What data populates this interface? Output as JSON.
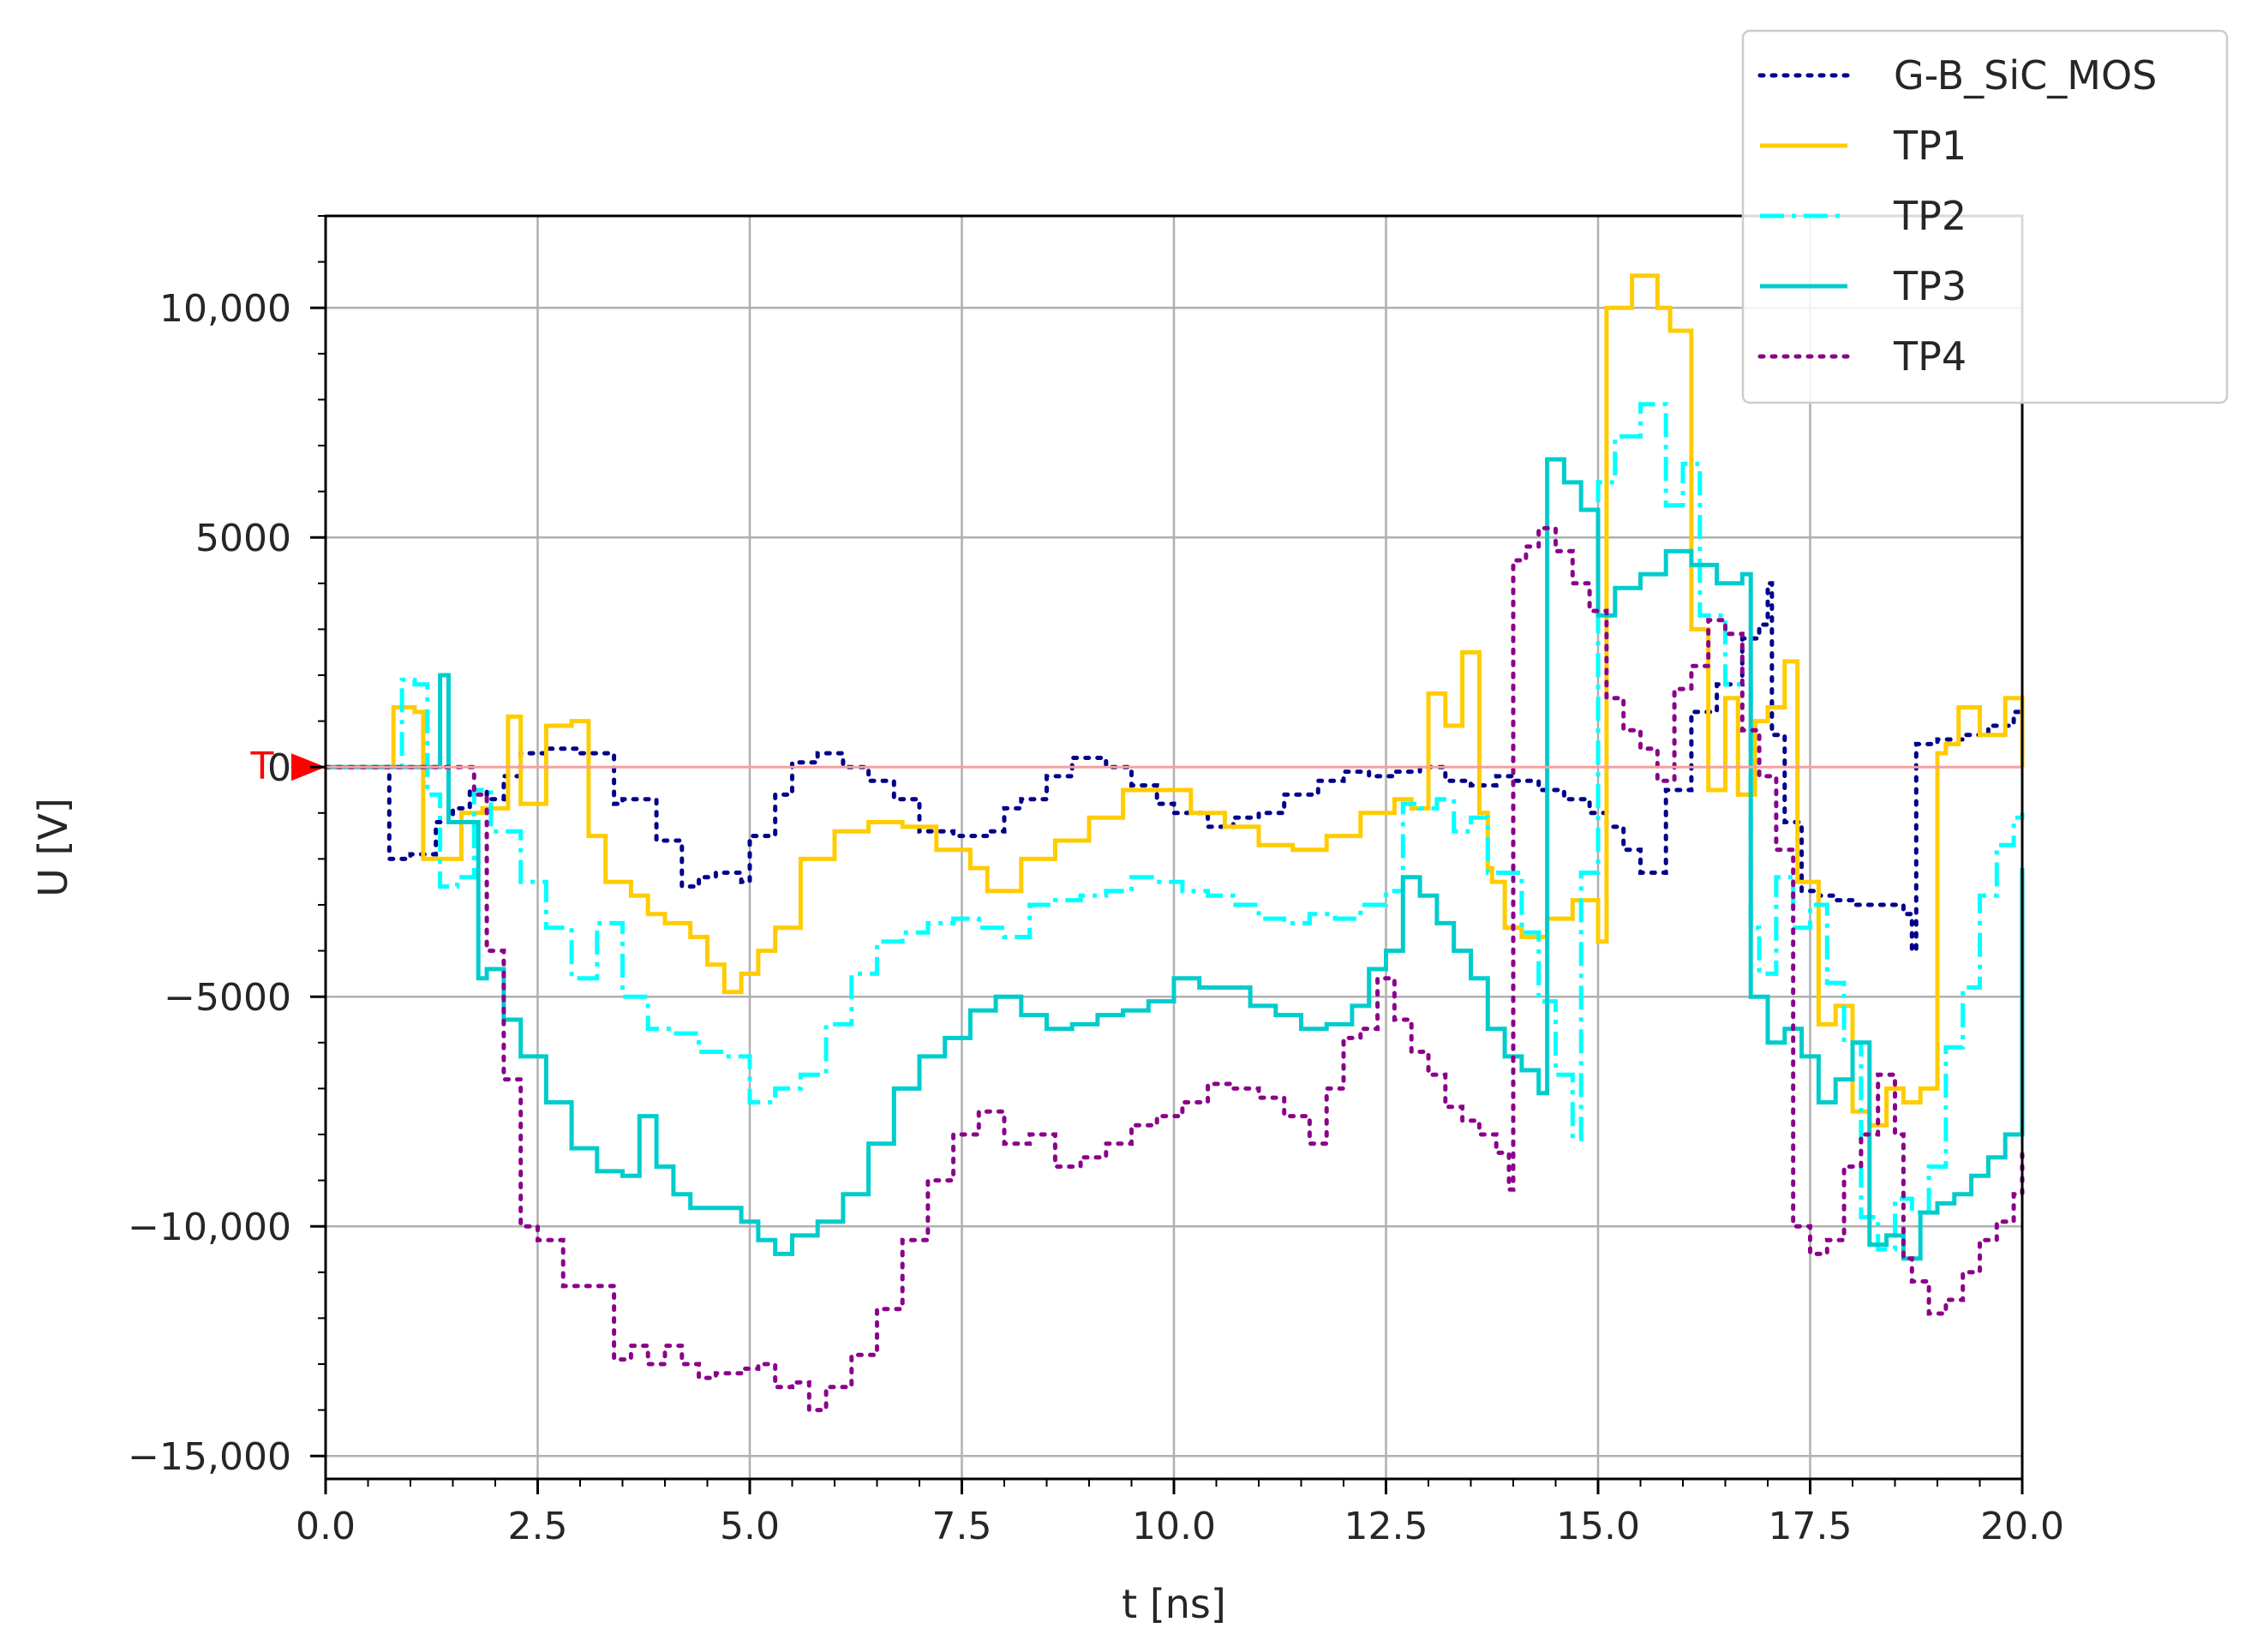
{
  "chart_data": {
    "type": "line",
    "step": true,
    "xlabel": "t [ns]",
    "ylabel": "U [V]",
    "xlim": [
      0,
      20
    ],
    "ylim": [
      -15500,
      12000
    ],
    "xticks": [
      0.0,
      2.5,
      5.0,
      7.5,
      10.0,
      12.5,
      15.0,
      17.5,
      20.0
    ],
    "xtick_labels": [
      "0.0",
      "2.5",
      "5.0",
      "7.5",
      "10.0",
      "12.5",
      "15.0",
      "17.5",
      "20.0"
    ],
    "yticks": [
      10000,
      5000,
      0,
      -5000,
      -10000,
      -15000
    ],
    "ytick_labels": [
      "10,000",
      "5000",
      "0",
      "−5000",
      "−10,000",
      "−15,000"
    ],
    "grid": true,
    "legend_position": "top-right",
    "trigger": {
      "label": "T",
      "value": 0,
      "color": "#ff0000"
    },
    "series": [
      {
        "name": "G-B_SiC_MOS",
        "color": "#00008b",
        "dash": "dotted",
        "x": [
          0,
          0.7,
          0.75,
          1.0,
          1.3,
          1.5,
          1.7,
          1.9,
          2.1,
          2.3,
          2.6,
          3.0,
          3.4,
          3.5,
          3.9,
          4.2,
          4.4,
          4.6,
          4.9,
          5.0,
          5.3,
          5.5,
          5.8,
          6.1,
          6.4,
          6.7,
          7.0,
          7.4,
          7.8,
          8.0,
          8.2,
          8.5,
          8.8,
          9.2,
          9.5,
          9.8,
          10.0,
          10.4,
          10.7,
          11.0,
          11.3,
          11.7,
          12.0,
          12.3,
          12.6,
          12.9,
          13.2,
          13.5,
          13.8,
          14.0,
          14.3,
          14.6,
          14.9,
          15.1,
          15.3,
          15.5,
          15.8,
          16.1,
          16.4,
          16.7,
          16.9,
          17.0,
          17.05,
          17.2,
          17.4,
          17.6,
          17.8,
          18.0,
          18.3,
          18.6,
          18.7,
          18.75,
          19.0,
          19.3,
          19.6,
          19.9,
          20.0
        ],
        "y": [
          0,
          0,
          -2000,
          -1900,
          -1200,
          -900,
          -500,
          -700,
          -200,
          300,
          400,
          300,
          -800,
          -700,
          -1600,
          -2600,
          -2400,
          -2300,
          -2500,
          -1500,
          -600,
          100,
          300,
          0,
          -300,
          -700,
          -1400,
          -1500,
          -1400,
          -900,
          -700,
          -200,
          200,
          0,
          -400,
          -800,
          -1000,
          -1300,
          -1100,
          -1000,
          -600,
          -300,
          -100,
          -200,
          -100,
          0,
          -300,
          -400,
          -200,
          -300,
          -500,
          -700,
          -1000,
          -1300,
          -1800,
          -2300,
          -500,
          1200,
          1800,
          2800,
          3100,
          4000,
          700,
          -1200,
          -2700,
          -2800,
          -2900,
          -3000,
          -3000,
          -3200,
          -4000,
          500,
          600,
          700,
          900,
          1200,
          1400
        ]
      },
      {
        "name": "TP1",
        "color": "#ffcc00",
        "dash": "solid",
        "x": [
          0,
          0.8,
          1.05,
          1.15,
          1.5,
          1.6,
          1.85,
          2.15,
          2.3,
          2.6,
          2.9,
          3.1,
          3.3,
          3.6,
          3.8,
          4.0,
          4.3,
          4.5,
          4.7,
          4.9,
          5.1,
          5.3,
          5.6,
          6.0,
          6.4,
          6.8,
          7.2,
          7.6,
          7.8,
          8.2,
          8.6,
          9.0,
          9.4,
          9.8,
          10.2,
          10.6,
          11.0,
          11.4,
          11.8,
          12.2,
          12.6,
          12.8,
          13.0,
          13.2,
          13.4,
          13.6,
          13.7,
          13.75,
          13.9,
          14.1,
          14.4,
          14.7,
          15.0,
          15.1,
          15.4,
          15.7,
          15.85,
          16.1,
          16.3,
          16.5,
          16.65,
          16.85,
          17.0,
          17.2,
          17.35,
          17.6,
          17.8,
          18.0,
          18.2,
          18.4,
          18.6,
          18.8,
          19.0,
          19.1,
          19.25,
          19.5,
          19.8,
          20.0
        ],
        "y": [
          0,
          1300,
          1200,
          -2000,
          -2000,
          -1000,
          -900,
          1100,
          -800,
          900,
          1000,
          -1500,
          -2500,
          -2800,
          -3200,
          -3400,
          -3700,
          -4300,
          -4900,
          -4500,
          -4000,
          -3500,
          -2000,
          -1400,
          -1200,
          -1300,
          -1800,
          -2200,
          -2700,
          -2000,
          -1600,
          -1100,
          -500,
          -500,
          -1000,
          -1300,
          -1700,
          -1800,
          -1500,
          -1000,
          -700,
          -900,
          1600,
          900,
          2500,
          -1000,
          -2200,
          -2500,
          -3500,
          -3700,
          -3300,
          -2900,
          -3800,
          10000,
          10700,
          10000,
          9500,
          3000,
          -500,
          1500,
          -600,
          1000,
          1300,
          2300,
          -2500,
          -5600,
          -5200,
          -7500,
          -7800,
          -7000,
          -7300,
          -7000,
          300,
          500,
          1300,
          700,
          1500,
          0
        ]
      },
      {
        "name": "TP2",
        "color": "#00ffff",
        "dash": "dashdot",
        "x": [
          0,
          0.9,
          1.05,
          1.2,
          1.35,
          1.55,
          1.75,
          1.95,
          2.3,
          2.6,
          2.9,
          3.2,
          3.5,
          3.8,
          4.1,
          4.4,
          4.7,
          5.0,
          5.3,
          5.6,
          5.9,
          6.2,
          6.5,
          6.8,
          7.1,
          7.4,
          7.7,
          8.0,
          8.3,
          8.6,
          8.9,
          9.2,
          9.5,
          9.8,
          10.1,
          10.4,
          10.7,
          11.0,
          11.3,
          11.6,
          11.9,
          12.2,
          12.5,
          12.7,
          12.9,
          13.1,
          13.3,
          13.5,
          13.7,
          13.9,
          14.1,
          14.3,
          14.5,
          14.7,
          14.8,
          15.0,
          15.2,
          15.5,
          15.8,
          16.0,
          16.2,
          16.5,
          16.8,
          16.9,
          17.1,
          17.3,
          17.5,
          17.7,
          17.9,
          18.1,
          18.3,
          18.5,
          18.7,
          18.9,
          19.1,
          19.3,
          19.5,
          19.7,
          19.9,
          20.0
        ],
        "y": [
          0,
          1900,
          1800,
          -600,
          -2600,
          -2400,
          -500,
          -1400,
          -2500,
          -3500,
          -4600,
          -3400,
          -5000,
          -5700,
          -5800,
          -6200,
          -6300,
          -7300,
          -7000,
          -6700,
          -5600,
          -4500,
          -3800,
          -3600,
          -3400,
          -3300,
          -3500,
          -3700,
          -3000,
          -2900,
          -2800,
          -2700,
          -2400,
          -2500,
          -2700,
          -2800,
          -3000,
          -3300,
          -3400,
          -3200,
          -3300,
          -3000,
          -2700,
          -800,
          -900,
          -700,
          -1400,
          -1100,
          -2300,
          -2300,
          -3600,
          -5100,
          -6700,
          -8100,
          -2300,
          6200,
          7200,
          7900,
          5700,
          6600,
          3300,
          1800,
          -3500,
          -4500,
          -2400,
          -3500,
          -3000,
          -4700,
          -6000,
          -9800,
          -10500,
          -9400,
          -9700,
          -8700,
          -6100,
          -4800,
          -2800,
          -1700,
          -1100,
          -1000
        ]
      },
      {
        "name": "TP3",
        "color": "#00cccc",
        "dash": "solid",
        "x": [
          0,
          1.35,
          1.45,
          1.6,
          1.8,
          1.9,
          2.1,
          2.3,
          2.6,
          2.9,
          3.2,
          3.5,
          3.7,
          3.9,
          4.1,
          4.3,
          4.6,
          4.9,
          5.1,
          5.3,
          5.5,
          5.8,
          6.1,
          6.4,
          6.7,
          7.0,
          7.3,
          7.6,
          7.9,
          8.2,
          8.5,
          8.8,
          9.1,
          9.4,
          9.7,
          10.0,
          10.3,
          10.6,
          10.9,
          11.2,
          11.5,
          11.8,
          12.1,
          12.3,
          12.5,
          12.7,
          12.9,
          13.1,
          13.3,
          13.5,
          13.7,
          13.9,
          14.1,
          14.3,
          14.4,
          14.6,
          14.8,
          15.0,
          15.2,
          15.5,
          15.8,
          16.1,
          16.4,
          16.7,
          16.8,
          17.0,
          17.2,
          17.4,
          17.6,
          17.8,
          18.0,
          18.2,
          18.4,
          18.6,
          18.8,
          19.0,
          19.2,
          19.4,
          19.6,
          19.8,
          20.0
        ],
        "y": [
          0,
          2000,
          -1200,
          -1200,
          -4600,
          -4400,
          -5500,
          -6300,
          -7300,
          -8300,
          -8800,
          -8900,
          -7600,
          -8700,
          -9300,
          -9600,
          -9600,
          -9900,
          -10300,
          -10600,
          -10200,
          -9900,
          -9300,
          -8200,
          -7000,
          -6300,
          -5900,
          -5300,
          -5000,
          -5400,
          -5700,
          -5600,
          -5400,
          -5300,
          -5100,
          -4600,
          -4800,
          -4800,
          -5200,
          -5400,
          -5700,
          -5600,
          -5200,
          -4400,
          -4000,
          -2400,
          -2800,
          -3400,
          -4000,
          -4600,
          -5700,
          -6300,
          -6600,
          -7100,
          6700,
          6200,
          5600,
          3300,
          3900,
          4200,
          4700,
          4400,
          4000,
          4200,
          -5000,
          -6000,
          -5700,
          -6300,
          -7300,
          -6800,
          -6000,
          -10400,
          -10200,
          -10700,
          -9700,
          -9500,
          -9300,
          -8900,
          -8500,
          -8000,
          -2200
        ]
      },
      {
        "name": "TP4",
        "color": "#8b008b",
        "dash": "dotted",
        "x": [
          0,
          1.7,
          1.75,
          1.9,
          2.1,
          2.3,
          2.5,
          2.8,
          3.1,
          3.4,
          3.6,
          3.8,
          4.0,
          4.2,
          4.4,
          4.6,
          4.9,
          5.1,
          5.3,
          5.5,
          5.7,
          5.9,
          6.2,
          6.5,
          6.8,
          7.1,
          7.4,
          7.7,
          8.0,
          8.3,
          8.6,
          8.9,
          9.2,
          9.5,
          9.8,
          10.1,
          10.4,
          10.7,
          11.0,
          11.3,
          11.6,
          11.8,
          12.0,
          12.2,
          12.4,
          12.6,
          12.8,
          13.0,
          13.2,
          13.4,
          13.6,
          13.8,
          13.95,
          14.0,
          14.15,
          14.3,
          14.5,
          14.7,
          14.9,
          15.1,
          15.3,
          15.5,
          15.7,
          15.9,
          16.1,
          16.3,
          16.5,
          16.7,
          16.9,
          17.1,
          17.3,
          17.5,
          17.7,
          17.9,
          18.1,
          18.3,
          18.5,
          18.6,
          18.7,
          18.9,
          19.1,
          19.3,
          19.5,
          19.7,
          19.9,
          20.0
        ],
        "y": [
          0,
          0,
          -600,
          -4000,
          -6800,
          -10000,
          -10300,
          -11300,
          -11300,
          -12900,
          -12600,
          -13000,
          -12600,
          -13000,
          -13300,
          -13200,
          -13100,
          -13000,
          -13500,
          -13400,
          -14000,
          -13500,
          -12800,
          -11800,
          -10300,
          -9000,
          -8000,
          -7500,
          -8200,
          -8000,
          -8700,
          -8500,
          -8200,
          -7800,
          -7600,
          -7300,
          -6900,
          -7000,
          -7200,
          -7600,
          -8200,
          -7000,
          -5900,
          -5700,
          -4600,
          -5500,
          -6200,
          -6700,
          -7400,
          -7700,
          -8000,
          -8400,
          -9200,
          4500,
          4800,
          5200,
          4700,
          4000,
          3400,
          1500,
          800,
          400,
          -300,
          1700,
          2200,
          3200,
          2900,
          800,
          -200,
          -1800,
          -10000,
          -10600,
          -10300,
          -8700,
          -8000,
          -6700,
          -8000,
          -10700,
          -11200,
          -11900,
          -11600,
          -11000,
          -10300,
          -9900,
          -9300,
          -8400
        ]
      }
    ]
  }
}
